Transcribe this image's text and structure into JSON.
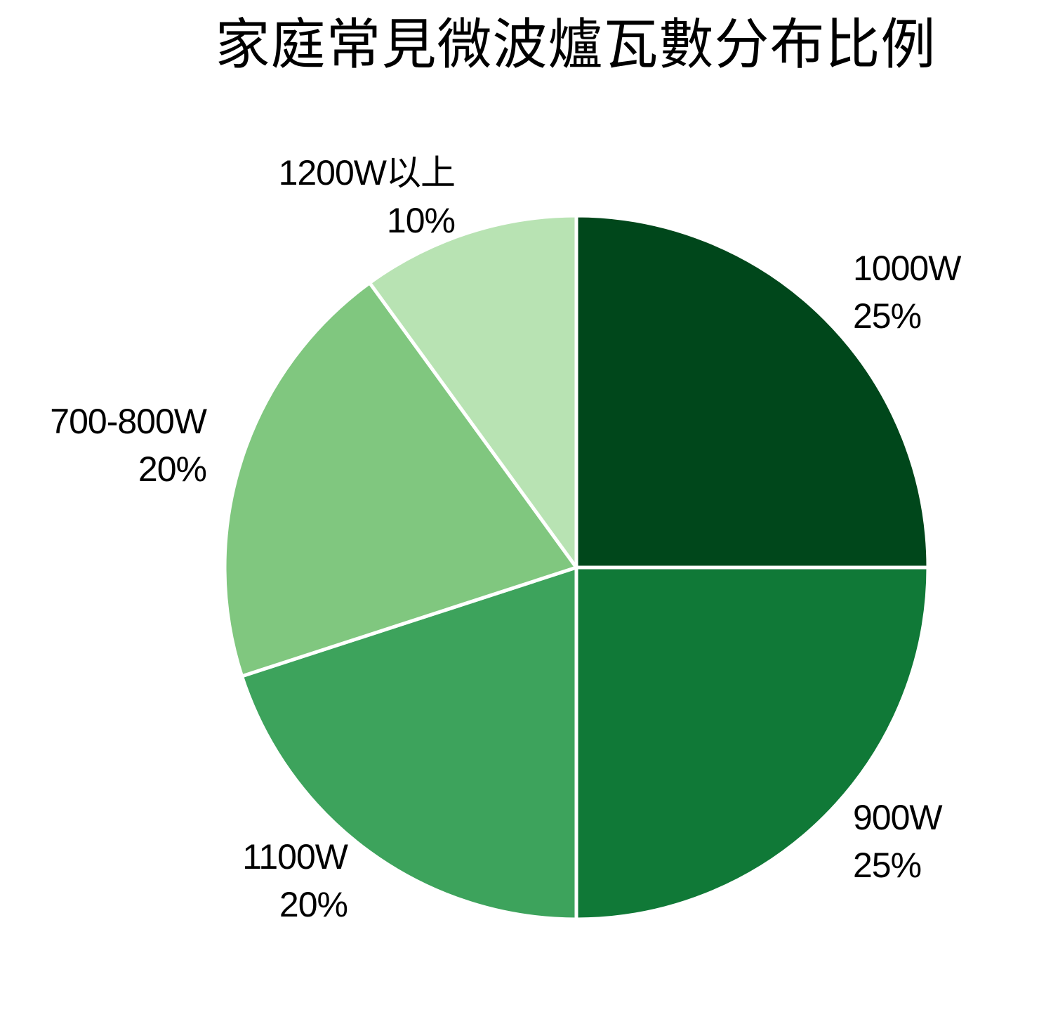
{
  "title": "家庭常見微波爐瓦數分布比例",
  "chart_data": {
    "type": "pie",
    "title": "家庭常見微波爐瓦數分布比例",
    "start_angle": "12 o'clock, clockwise",
    "categories": [
      "1000W",
      "900W",
      "1100W",
      "700-800W",
      "1200W以上"
    ],
    "values": [
      25,
      25,
      20,
      20,
      10
    ],
    "unit": "%",
    "labels": [
      "25%",
      "25%",
      "20%",
      "20%",
      "10%"
    ],
    "colors": [
      "#00471B",
      "#107937",
      "#3DA35C",
      "#80C77F",
      "#B8E3B3"
    ],
    "slice_border_color": "#FFFFFF",
    "legend": "none (labels placed outside slices)"
  },
  "slices": [
    {
      "name": "1000W",
      "pct": "25%"
    },
    {
      "name": "900W",
      "pct": "25%"
    },
    {
      "name": "1100W",
      "pct": "20%"
    },
    {
      "name": "700-800W",
      "pct": "20%"
    },
    {
      "name": "1200W以上",
      "pct": "10%"
    }
  ]
}
